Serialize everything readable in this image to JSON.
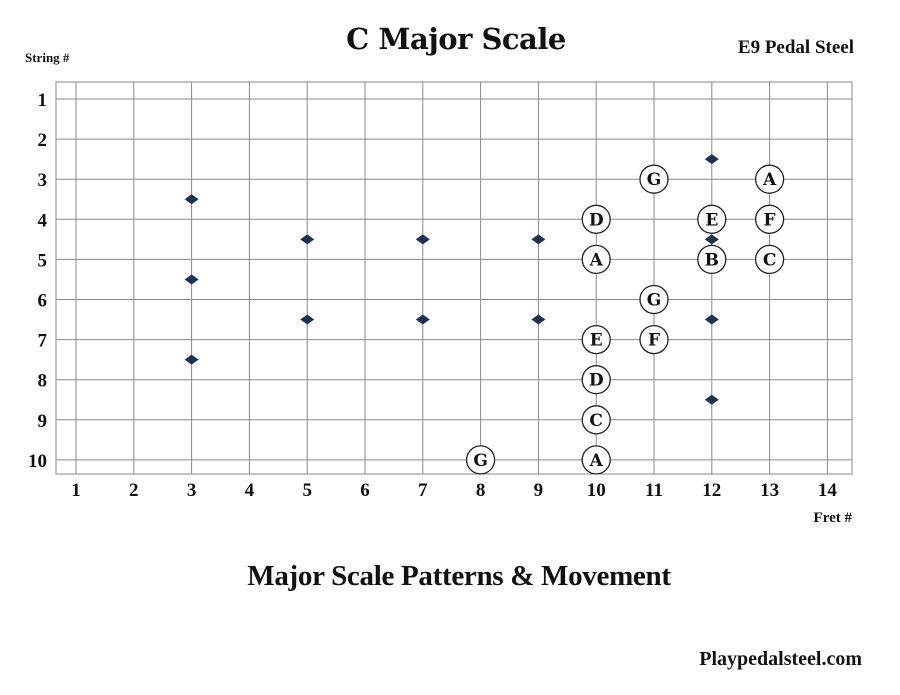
{
  "header": {
    "title": "C Major Scale",
    "subtitle": "E9 Pedal Steel",
    "string_axis_label": "String #",
    "fret_axis_label": "Fret #"
  },
  "footer": {
    "heading": "Major Scale Patterns & Movement",
    "website": "Playpedalsteel.com"
  },
  "chart_data": {
    "type": "fretboard",
    "strings": [
      "1",
      "2",
      "3",
      "4",
      "5",
      "6",
      "7",
      "8",
      "9",
      "10"
    ],
    "frets": [
      "1",
      "2",
      "3",
      "4",
      "5",
      "6",
      "7",
      "8",
      "9",
      "10",
      "11",
      "12",
      "13",
      "14"
    ],
    "fret_markers": [
      {
        "fret": 3,
        "string": 3.5
      },
      {
        "fret": 3,
        "string": 5.5
      },
      {
        "fret": 3,
        "string": 7.5
      },
      {
        "fret": 5,
        "string": 4.5
      },
      {
        "fret": 5,
        "string": 6.5
      },
      {
        "fret": 7,
        "string": 4.5
      },
      {
        "fret": 7,
        "string": 6.5
      },
      {
        "fret": 9,
        "string": 4.5
      },
      {
        "fret": 9,
        "string": 6.5
      },
      {
        "fret": 12,
        "string": 2.5
      },
      {
        "fret": 12,
        "string": 4.5
      },
      {
        "fret": 12,
        "string": 6.5
      },
      {
        "fret": 12,
        "string": 8.5
      }
    ],
    "notes": [
      {
        "note": "G",
        "string": 3,
        "fret": 11
      },
      {
        "note": "A",
        "string": 3,
        "fret": 13
      },
      {
        "note": "D",
        "string": 4,
        "fret": 10
      },
      {
        "note": "E",
        "string": 4,
        "fret": 12
      },
      {
        "note": "F",
        "string": 4,
        "fret": 13
      },
      {
        "note": "A",
        "string": 5,
        "fret": 10
      },
      {
        "note": "B",
        "string": 5,
        "fret": 12
      },
      {
        "note": "C",
        "string": 5,
        "fret": 13
      },
      {
        "note": "G",
        "string": 6,
        "fret": 11
      },
      {
        "note": "E",
        "string": 7,
        "fret": 10
      },
      {
        "note": "F",
        "string": 7,
        "fret": 11
      },
      {
        "note": "D",
        "string": 8,
        "fret": 10
      },
      {
        "note": "C",
        "string": 9,
        "fret": 10
      },
      {
        "note": "G",
        "string": 10,
        "fret": 8
      },
      {
        "note": "A",
        "string": 10,
        "fret": 10
      }
    ],
    "colors": {
      "grid": "#8a8a8a",
      "marker": "#1f2f55",
      "note_fill": "#ffffff",
      "note_stroke": "#222222"
    }
  }
}
